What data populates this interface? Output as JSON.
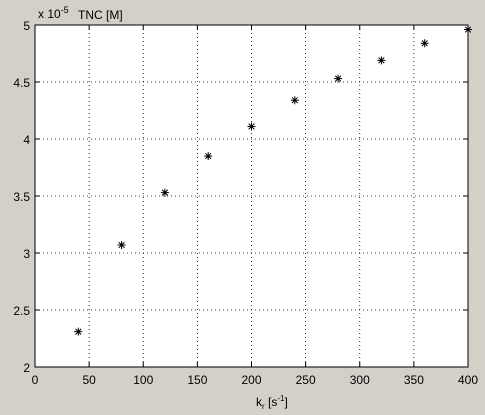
{
  "chart_data": {
    "type": "scatter",
    "y_multiplier": [
      "x 10",
      "-5"
    ],
    "y_label": "TNC [M]",
    "x_label": [
      "k",
      "r",
      " [s",
      "-1",
      "]"
    ],
    "x": [
      40,
      80,
      120,
      160,
      200,
      240,
      280,
      320,
      360,
      400
    ],
    "series": [
      {
        "color": "#000000",
        "values": [
          2.31,
          3.07,
          3.53,
          3.85,
          4.11,
          4.34,
          4.53,
          4.69,
          4.84,
          4.96
        ]
      }
    ],
    "xlim": [
      0,
      400
    ],
    "xticks": [
      0,
      50,
      100,
      150,
      200,
      250,
      300,
      350,
      400
    ],
    "ylim": [
      2,
      5
    ],
    "yticks": [
      2,
      2.5,
      3,
      3.5,
      4,
      4.5,
      5
    ],
    "grid": true
  }
}
